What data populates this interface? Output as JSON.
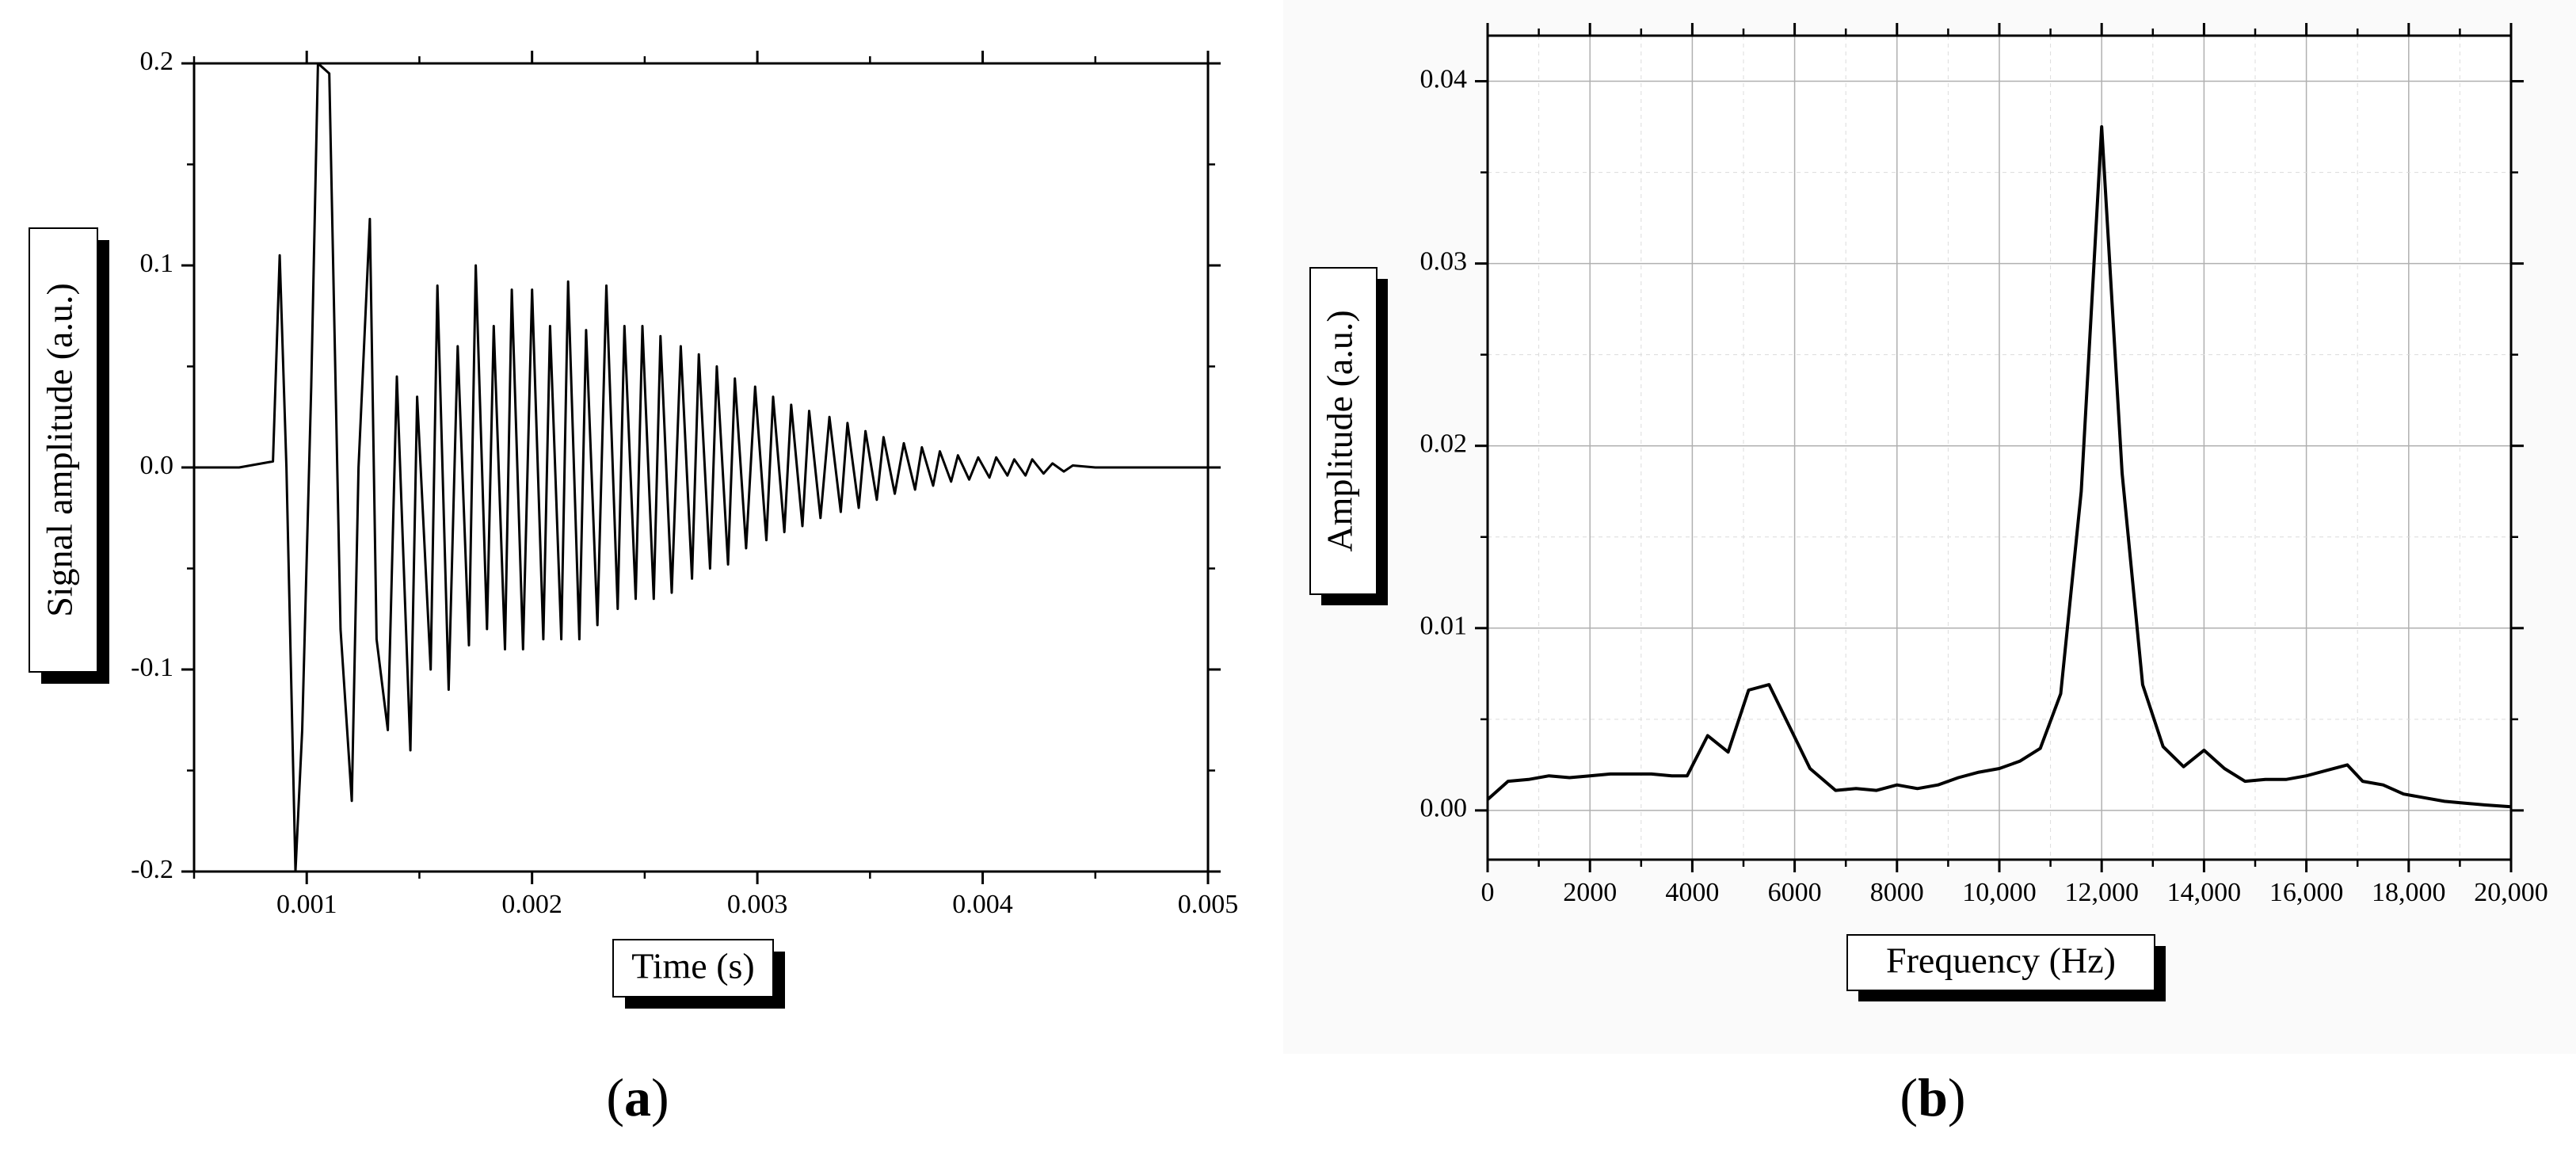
{
  "chart_data": [
    {
      "id": "a",
      "panel_label": {
        "open": "(",
        "letter": "a",
        "close": ")"
      },
      "type": "line",
      "xlabel": "Time (s)",
      "ylabel": "Signal amplitude (a.u.)",
      "xlim": [
        0.0005,
        0.005
      ],
      "ylim": [
        -0.2,
        0.2
      ],
      "grid": false,
      "x_ticks": [
        {
          "v": 0.001,
          "label": "0.001"
        },
        {
          "v": 0.002,
          "label": "0.002"
        },
        {
          "v": 0.003,
          "label": "0.003"
        },
        {
          "v": 0.004,
          "label": "0.004"
        },
        {
          "v": 0.005,
          "label": "0.005"
        }
      ],
      "y_ticks": [
        {
          "v": -0.2,
          "label": "-0.2"
        },
        {
          "v": -0.1,
          "label": "-0.1"
        },
        {
          "v": 0.0,
          "label": "0.0"
        },
        {
          "v": 0.1,
          "label": "0.1"
        },
        {
          "v": 0.2,
          "label": "0.2"
        }
      ],
      "series": [
        {
          "x": [
            0.0005,
            0.0007,
            0.00085,
            0.00088,
            0.00091,
            0.00095,
            0.00098,
            0.00102,
            0.00105,
            0.0011,
            0.00115,
            0.0012,
            0.00123,
            0.00128,
            0.00131,
            0.00136,
            0.0014,
            0.00146,
            0.00149,
            0.00155,
            0.00158,
            0.00163,
            0.00167,
            0.00172,
            0.00175,
            0.0018,
            0.00183,
            0.00188,
            0.00191,
            0.00196,
            0.002,
            0.00205,
            0.00208,
            0.00213,
            0.00216,
            0.00221,
            0.00224,
            0.00229,
            0.00233,
            0.00238,
            0.00241,
            0.00246,
            0.00249,
            0.00254,
            0.00257,
            0.00262,
            0.00266,
            0.00271,
            0.00274,
            0.00279,
            0.00282,
            0.00287,
            0.0029,
            0.00295,
            0.00299,
            0.00304,
            0.00307,
            0.00312,
            0.00315,
            0.0032,
            0.00323,
            0.00328,
            0.00332,
            0.00337,
            0.0034,
            0.00345,
            0.00348,
            0.00353,
            0.00356,
            0.00361,
            0.00365,
            0.0037,
            0.00373,
            0.00378,
            0.00381,
            0.00386,
            0.00389,
            0.00394,
            0.00398,
            0.00403,
            0.00406,
            0.00411,
            0.00414,
            0.00419,
            0.00422,
            0.00427,
            0.00431,
            0.00436,
            0.0044,
            0.0045,
            0.0047,
            0.0049,
            0.005
          ],
          "y": [
            0.0,
            0.0,
            0.003,
            0.105,
            0.0,
            -0.2,
            -0.13,
            0.04,
            0.2,
            0.195,
            -0.08,
            -0.165,
            0.0,
            0.123,
            -0.085,
            -0.13,
            0.045,
            -0.14,
            0.035,
            -0.1,
            0.09,
            -0.11,
            0.06,
            -0.088,
            0.1,
            -0.08,
            0.07,
            -0.09,
            0.088,
            -0.09,
            0.088,
            -0.085,
            0.07,
            -0.085,
            0.092,
            -0.085,
            0.068,
            -0.078,
            0.09,
            -0.07,
            0.07,
            -0.065,
            0.07,
            -0.065,
            0.065,
            -0.062,
            0.06,
            -0.055,
            0.056,
            -0.05,
            0.05,
            -0.048,
            0.044,
            -0.04,
            0.04,
            -0.036,
            0.035,
            -0.032,
            0.031,
            -0.029,
            0.028,
            -0.025,
            0.025,
            -0.022,
            0.022,
            -0.02,
            0.018,
            -0.016,
            0.015,
            -0.013,
            0.012,
            -0.011,
            0.01,
            -0.009,
            0.008,
            -0.007,
            0.006,
            -0.006,
            0.005,
            -0.005,
            0.005,
            -0.004,
            0.004,
            -0.004,
            0.004,
            -0.003,
            0.002,
            -0.002,
            0.001,
            0.0,
            0.0,
            0.0,
            0.0
          ]
        }
      ]
    },
    {
      "id": "b",
      "panel_label": {
        "open": "(",
        "letter": "b",
        "close": ")"
      },
      "type": "line",
      "xlabel": "Frequency (Hz)",
      "ylabel": "Amplitude (a.u.)",
      "xlim": [
        0,
        20000
      ],
      "ylim": [
        -0.0027,
        0.0425
      ],
      "grid": true,
      "x_ticks": [
        {
          "v": 0,
          "label": "0"
        },
        {
          "v": 2000,
          "label": "2000"
        },
        {
          "v": 4000,
          "label": "4000"
        },
        {
          "v": 6000,
          "label": "6000"
        },
        {
          "v": 8000,
          "label": "8000"
        },
        {
          "v": 10000,
          "label": "10,000"
        },
        {
          "v": 12000,
          "label": "12,000"
        },
        {
          "v": 14000,
          "label": "14,000"
        },
        {
          "v": 16000,
          "label": "16,000"
        },
        {
          "v": 18000,
          "label": "18,000"
        },
        {
          "v": 20000,
          "label": "20,000"
        }
      ],
      "y_ticks": [
        {
          "v": 0.0,
          "label": "0.00"
        },
        {
          "v": 0.01,
          "label": "0.01"
        },
        {
          "v": 0.02,
          "label": "0.02"
        },
        {
          "v": 0.03,
          "label": "0.03"
        },
        {
          "v": 0.04,
          "label": "0.04"
        }
      ],
      "series": [
        {
          "x": [
            0,
            400,
            800,
            1200,
            1600,
            2000,
            2400,
            2800,
            3200,
            3600,
            3900,
            4300,
            4700,
            5100,
            5500,
            5900,
            6300,
            6800,
            7200,
            7600,
            8000,
            8400,
            8800,
            9200,
            9600,
            10000,
            10400,
            10800,
            11200,
            11600,
            12000,
            12400,
            12800,
            13200,
            13600,
            14000,
            14400,
            14800,
            15200,
            15600,
            16000,
            16400,
            16800,
            17100,
            17500,
            17900,
            18300,
            18700,
            19100,
            19500,
            20000
          ],
          "y": [
            0.0006,
            0.0016,
            0.0017,
            0.0019,
            0.0018,
            0.0019,
            0.002,
            0.002,
            0.002,
            0.0019,
            0.0019,
            0.0041,
            0.0032,
            0.0066,
            0.0069,
            0.0046,
            0.0023,
            0.0011,
            0.0012,
            0.0011,
            0.0014,
            0.0012,
            0.0014,
            0.0018,
            0.0021,
            0.0023,
            0.0027,
            0.0034,
            0.0064,
            0.0175,
            0.0375,
            0.0185,
            0.0069,
            0.0035,
            0.0024,
            0.0033,
            0.0023,
            0.0016,
            0.0017,
            0.0017,
            0.0019,
            0.0022,
            0.0025,
            0.0016,
            0.0014,
            0.0009,
            0.0007,
            0.0005,
            0.0004,
            0.0003,
            0.0002
          ]
        }
      ]
    }
  ]
}
